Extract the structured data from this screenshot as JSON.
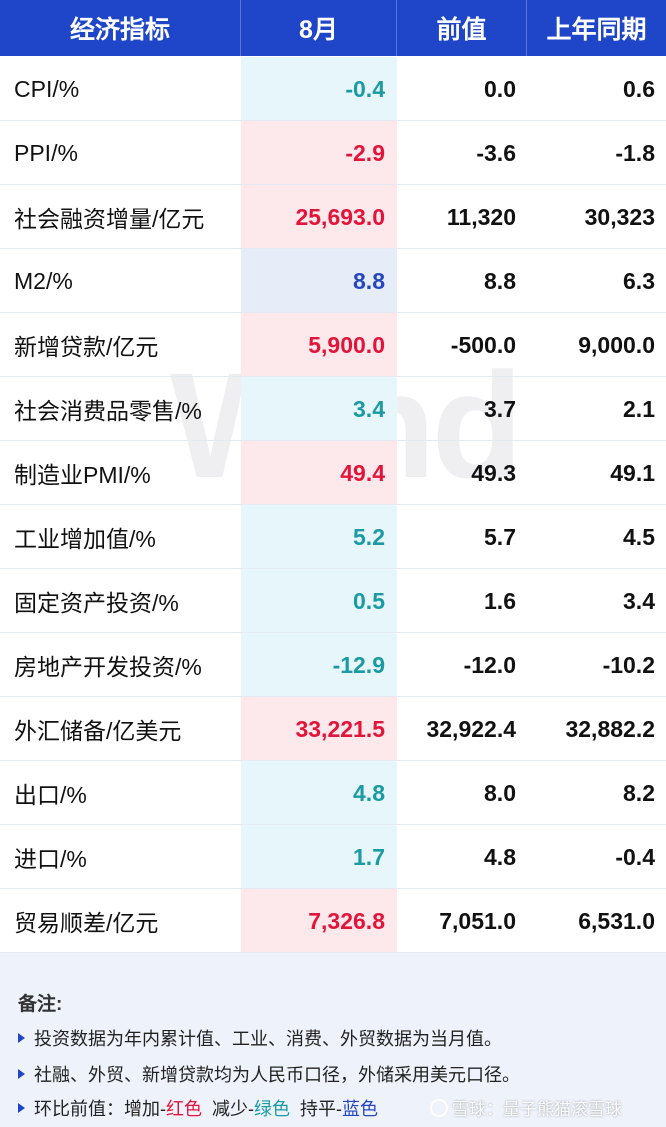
{
  "header": {
    "col_indicator": "经济指标",
    "col_month": "8月",
    "col_prev": "前值",
    "col_yoy": "上年同期"
  },
  "rows": [
    {
      "name": "CPI/%",
      "value": "-0.4",
      "prev": "0.0",
      "yoy": "0.6",
      "color": "green"
    },
    {
      "name": "PPI/%",
      "value": "-2.9",
      "prev": "-3.6",
      "yoy": "-1.8",
      "color": "red"
    },
    {
      "name": "社会融资增量/亿元",
      "value": "25,693.0",
      "prev": "11,320",
      "yoy": "30,323",
      "color": "red"
    },
    {
      "name": "M2/%",
      "value": "8.8",
      "prev": "8.8",
      "yoy": "6.3",
      "color": "blue"
    },
    {
      "name": "新增贷款/亿元",
      "value": "5,900.0",
      "prev": "-500.0",
      "yoy": "9,000.0",
      "color": "red"
    },
    {
      "name": "社会消费品零售/%",
      "value": "3.4",
      "prev": "3.7",
      "yoy": "2.1",
      "color": "green"
    },
    {
      "name": "制造业PMI/%",
      "value": "49.4",
      "prev": "49.3",
      "yoy": "49.1",
      "color": "red"
    },
    {
      "name": "工业增加值/%",
      "value": "5.2",
      "prev": "5.7",
      "yoy": "4.5",
      "color": "green"
    },
    {
      "name": "固定资产投资/%",
      "value": "0.5",
      "prev": "1.6",
      "yoy": "3.4",
      "color": "green"
    },
    {
      "name": "房地产开发投资/%",
      "value": "-12.9",
      "prev": "-12.0",
      "yoy": "-10.2",
      "color": "green"
    },
    {
      "name": "外汇储备/亿美元",
      "value": "33,221.5",
      "prev": "32,922.4",
      "yoy": "32,882.2",
      "color": "red"
    },
    {
      "name": "出口/%",
      "value": "4.8",
      "prev": "8.0",
      "yoy": "8.2",
      "color": "green"
    },
    {
      "name": "进口/%",
      "value": "1.7",
      "prev": "4.8",
      "yoy": "-0.4",
      "color": "green"
    },
    {
      "name": "贸易顺差/亿元",
      "value": "7,326.8",
      "prev": "7,051.0",
      "yoy": "6,531.0",
      "color": "red"
    }
  ],
  "watermark": "Wind",
  "notes": {
    "title": "备注:",
    "line1": "投资数据为年内累计值、工业、消费、外贸数据为当月值。",
    "line2": "社融、外贸、新增贷款均为人民币口径，外储采用美元口径。",
    "line3_prefix": "环比前值：增加-",
    "line3_red": "红色",
    "line3_mid1": "  减少-",
    "line3_green": "绿色",
    "line3_mid2": "  持平-",
    "line3_blue": "蓝色"
  },
  "xueqiu_watermark": "雪球：量子熊猫滚雪球",
  "colors": {
    "header_bg": "#1f46c8",
    "red": "#e3143a",
    "green": "#1a9aa2",
    "blue": "#2646bd"
  }
}
